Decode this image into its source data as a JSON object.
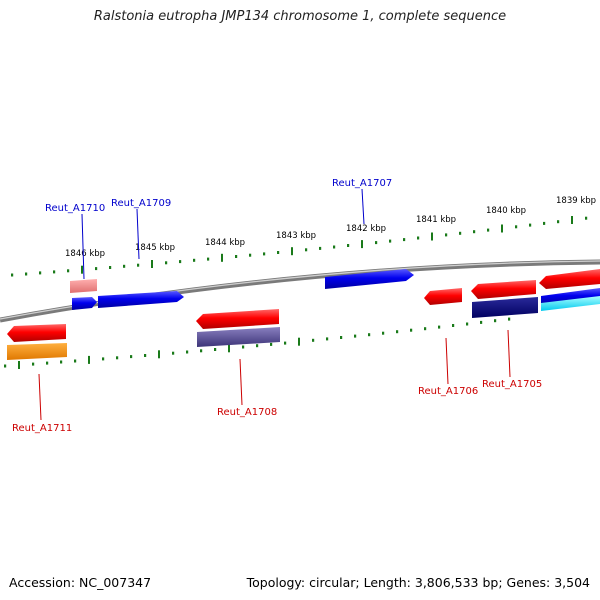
{
  "title": "Ralstonia eutropha JMP134 chromosome 1, complete sequence",
  "footer": {
    "accession": "Accession: NC_007347",
    "topology": "Topology: circular; Length: 3,806,533 bp; Genes: 3,504"
  },
  "scale_labels": [
    "1846 kbp",
    "1845 kbp",
    "1844 kbp",
    "1843 kbp",
    "1842 kbp",
    "1841 kbp",
    "1840 kbp",
    "1839 kbp"
  ],
  "colors": {
    "forward_label": "#0000cc",
    "reverse_label": "#cc0000",
    "tick": "#1a7a1a",
    "backbone": "#888888"
  },
  "gene_labels": {
    "forward": [
      "Reut_A1710",
      "Reut_A1709",
      "Reut_A1707"
    ],
    "reverse": [
      "Reut_A1711",
      "Reut_A1708",
      "Reut_A1706",
      "Reut_A1705"
    ]
  }
}
